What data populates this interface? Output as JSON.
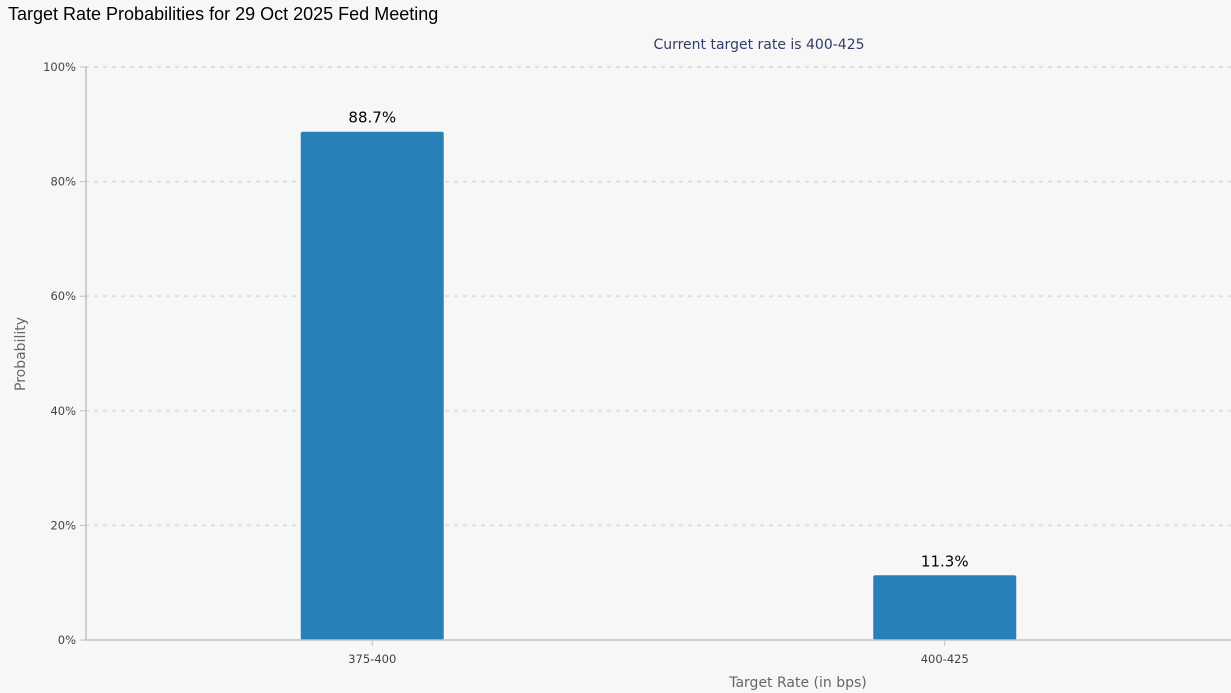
{
  "page": {
    "title": "Target Rate Probabilities for 29 Oct 2025 Fed Meeting"
  },
  "chart_data": {
    "type": "bar",
    "title": "Target Rate Probabilities for 29 Oct 2025 Fed Meeting",
    "subtitle": "Current target rate is 400-425",
    "xlabel": "Target Rate (in bps)",
    "ylabel": "Probability",
    "categories": [
      "375-400",
      "400-425"
    ],
    "values": [
      88.7,
      11.3
    ],
    "data_labels": [
      "88.7%",
      "11.3%"
    ],
    "ylim": [
      0,
      100
    ],
    "yticks": [
      0,
      20,
      40,
      60,
      80,
      100
    ],
    "ytick_labels": [
      "0%",
      "20%",
      "40%",
      "60%",
      "80%",
      "100%"
    ],
    "grid": true,
    "legend": "none",
    "colors": {
      "bar": "#2980b9",
      "grid": "#dddddd",
      "axis": "#c0c0c0",
      "background": "#f7f7f7"
    }
  }
}
